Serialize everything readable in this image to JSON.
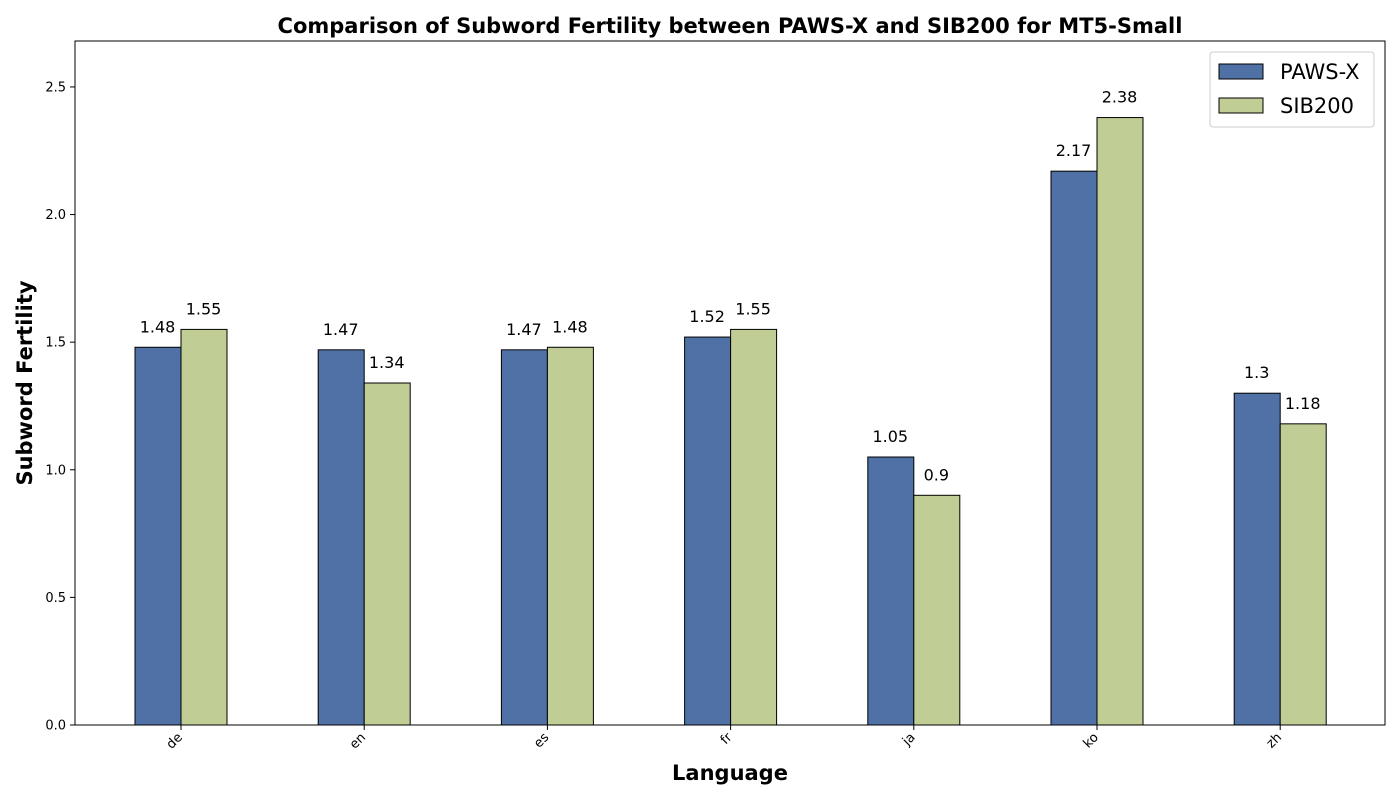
{
  "chart_data": {
    "type": "bar",
    "title": "Comparison of Subword Fertility between PAWS-X and SIB200 for MT5-Small",
    "xlabel": "Language",
    "ylabel": "Subword Fertility",
    "categories": [
      "de",
      "en",
      "es",
      "fr",
      "ja",
      "ko",
      "zh"
    ],
    "series": [
      {
        "name": "PAWS-X",
        "color": "#4f71a5",
        "values": [
          1.48,
          1.47,
          1.47,
          1.52,
          1.05,
          2.17,
          1.3
        ],
        "labels": [
          "1.48",
          "1.47",
          "1.47",
          "1.52",
          "1.05",
          "2.17",
          "1.3"
        ]
      },
      {
        "name": "SIB200",
        "color": "#c0cd94",
        "values": [
          1.55,
          1.34,
          1.48,
          1.55,
          0.9,
          2.38,
          1.18
        ],
        "labels": [
          "1.55",
          "1.34",
          "1.48",
          "1.55",
          "0.9",
          "2.38",
          "1.18"
        ]
      }
    ],
    "ylim": [
      0,
      2.68
    ],
    "yticks": [
      "0.0",
      "0.5",
      "1.0",
      "1.5",
      "2.0",
      "2.5"
    ],
    "grid": false,
    "legend_position": "top-right"
  }
}
